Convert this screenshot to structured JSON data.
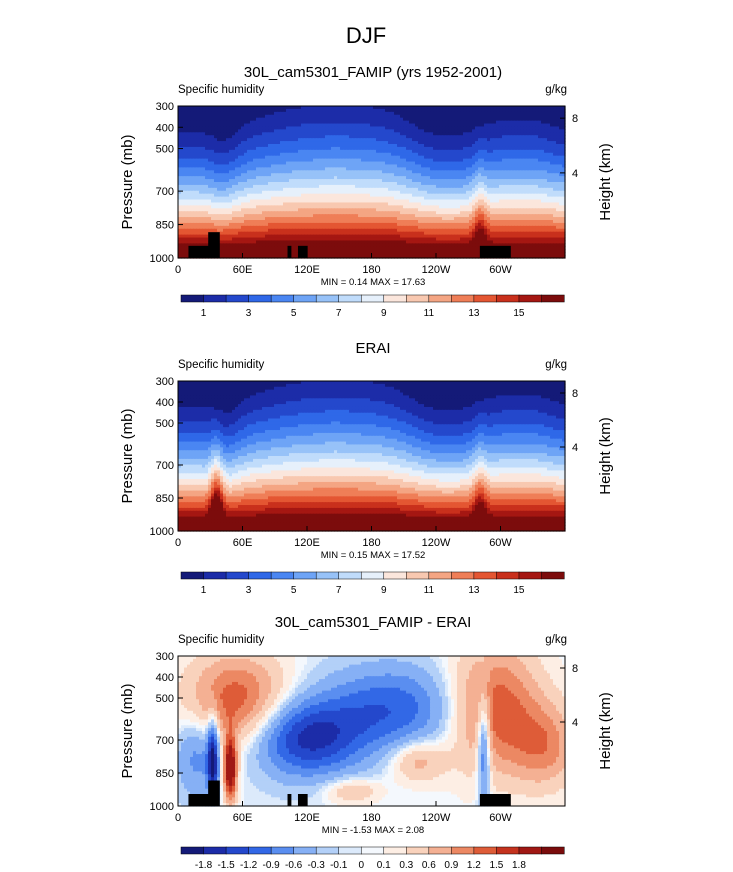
{
  "figure": {
    "title": "DJF"
  },
  "palettes": {
    "abs": [
      "#141a78",
      "#1c2ca8",
      "#2448cc",
      "#2f68e8",
      "#4a86f2",
      "#6ea4f6",
      "#97c2f8",
      "#c0dcfb",
      "#e6f0fb",
      "#fbe6dc",
      "#f8c8b0",
      "#f4a583",
      "#ef7e57",
      "#e45632",
      "#c9301c",
      "#a51712",
      "#7c0c0c"
    ],
    "diff": [
      "#141a78",
      "#1c2ca8",
      "#2448cc",
      "#3268e6",
      "#5a8ef0",
      "#86b0f5",
      "#b3d0f8",
      "#dceafb",
      "#f4f8fd",
      "#fdeee4",
      "#f9d2bc",
      "#f4b093",
      "#ec8863",
      "#de5c38",
      "#c4321e",
      "#a01814",
      "#7a0c0c"
    ]
  },
  "chart_data": [
    {
      "type": "contour",
      "title": "30L_cam5301_FAMIP (yrs 1952-2001)",
      "left_label": "Specific humidity",
      "right_label": "g/kg",
      "ylabel": "Pressure (mb)",
      "ylabel_right": "Height (km)",
      "yticks": [
        "300",
        "400",
        "500",
        "700",
        "850",
        "1000"
      ],
      "yticks_right": [
        "8",
        "4"
      ],
      "xticks": [
        "0",
        "60E",
        "120E",
        "180",
        "120W",
        "60W"
      ],
      "stats": "MIN =  0.14  MAX = 17.63",
      "colorbar_labels": [
        "1",
        "3",
        "5",
        "7",
        "9",
        "11",
        "13",
        "15"
      ],
      "palette": "abs",
      "min": 0.14,
      "max": 17.63
    },
    {
      "type": "contour",
      "title": "ERAI",
      "left_label": "Specific humidity",
      "right_label": "g/kg",
      "ylabel": "Pressure (mb)",
      "ylabel_right": "Height (km)",
      "yticks": [
        "300",
        "400",
        "500",
        "700",
        "850",
        "1000"
      ],
      "yticks_right": [
        "8",
        "4"
      ],
      "xticks": [
        "0",
        "60E",
        "120E",
        "180",
        "120W",
        "60W"
      ],
      "stats": "MIN =  0.15  MAX = 17.52",
      "colorbar_labels": [
        "1",
        "3",
        "5",
        "7",
        "9",
        "11",
        "13",
        "15"
      ],
      "palette": "abs",
      "min": 0.15,
      "max": 17.52
    },
    {
      "type": "contour",
      "title": "30L_cam5301_FAMIP - ERAI",
      "left_label": "Specific humidity",
      "right_label": "g/kg",
      "ylabel": "Pressure (mb)",
      "ylabel_right": "Height (km)",
      "yticks": [
        "300",
        "400",
        "500",
        "700",
        "850",
        "1000"
      ],
      "yticks_right": [
        "8",
        "4"
      ],
      "xticks": [
        "0",
        "60E",
        "120E",
        "180",
        "120W",
        "60W"
      ],
      "stats": "MIN = -1.53  MAX =  2.08",
      "colorbar_labels": [
        "-1.8",
        "-1.5",
        "-1.2",
        "-0.9",
        "-0.6",
        "-0.3",
        "-0.1",
        "0",
        "0.1",
        "0.3",
        "0.6",
        "0.9",
        "1.2",
        "1.5",
        "1.8"
      ],
      "palette": "diff",
      "min": -1.53,
      "max": 2.08
    }
  ]
}
